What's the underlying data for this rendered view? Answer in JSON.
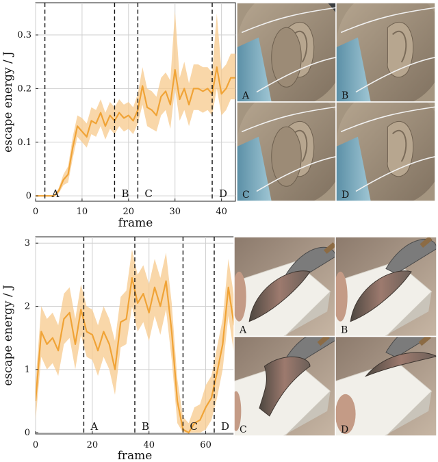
{
  "chart_data": [
    {
      "type": "line",
      "xlabel": "frame",
      "ylabel": "escape energy / J",
      "xlim": [
        0,
        43
      ],
      "ylim": [
        -0.01,
        0.36
      ],
      "xticks": [
        0,
        10,
        20,
        30,
        40
      ],
      "yticks": [
        0,
        0.1,
        0.2,
        0.3
      ],
      "ytick_labels": [
        "0",
        "0.1",
        "0.2",
        "0.3"
      ],
      "grid": true,
      "series_color": "#f0a336",
      "band_color": "#f7c98c",
      "x": [
        0,
        1,
        2,
        3,
        4,
        5,
        6,
        7,
        8,
        9,
        10,
        11,
        12,
        13,
        14,
        15,
        16,
        17,
        18,
        19,
        20,
        21,
        22,
        23,
        24,
        25,
        26,
        27,
        28,
        29,
        30,
        31,
        32,
        33,
        34,
        35,
        36,
        37,
        38,
        39,
        40,
        41,
        42,
        43
      ],
      "y": [
        0,
        0,
        0,
        0,
        0,
        0.01,
        0.03,
        0.04,
        0.09,
        0.13,
        0.12,
        0.11,
        0.14,
        0.135,
        0.155,
        0.13,
        0.15,
        0.14,
        0.155,
        0.145,
        0.15,
        0.14,
        0.16,
        0.205,
        0.165,
        0.16,
        0.15,
        0.185,
        0.195,
        0.17,
        0.235,
        0.18,
        0.2,
        0.17,
        0.2,
        0.2,
        0.195,
        0.2,
        0.19,
        0.24,
        0.19,
        0.2,
        0.22,
        0.22
      ],
      "band_lower": [
        0,
        0,
        0,
        0,
        0,
        0.005,
        0.02,
        0.025,
        0.07,
        0.11,
        0.1,
        0.09,
        0.115,
        0.11,
        0.13,
        0.105,
        0.125,
        0.115,
        0.13,
        0.12,
        0.125,
        0.115,
        0.135,
        0.17,
        0.13,
        0.125,
        0.12,
        0.15,
        0.16,
        0.125,
        0.2,
        0.14,
        0.16,
        0.13,
        0.16,
        0.16,
        0.155,
        0.16,
        0.15,
        0.2,
        0.15,
        0.16,
        0.18,
        0.18
      ],
      "band_upper": [
        0,
        0,
        0,
        0,
        0,
        0.015,
        0.04,
        0.055,
        0.11,
        0.15,
        0.145,
        0.135,
        0.165,
        0.16,
        0.18,
        0.155,
        0.175,
        0.165,
        0.18,
        0.17,
        0.175,
        0.165,
        0.19,
        0.24,
        0.2,
        0.195,
        0.185,
        0.22,
        0.23,
        0.215,
        0.345,
        0.22,
        0.25,
        0.21,
        0.245,
        0.245,
        0.24,
        0.24,
        0.23,
        0.34,
        0.235,
        0.245,
        0.265,
        0.265
      ],
      "events": [
        {
          "frame": 2,
          "label": "A"
        },
        {
          "frame": 17,
          "label": "B"
        },
        {
          "frame": 22,
          "label": "C"
        },
        {
          "frame": 38,
          "label": "D"
        }
      ],
      "thumbnails": [
        {
          "label": "A",
          "subject": "ear"
        },
        {
          "label": "B",
          "subject": "ear"
        },
        {
          "label": "C",
          "subject": "ear"
        },
        {
          "label": "D",
          "subject": "ear"
        }
      ]
    },
    {
      "type": "line",
      "xlabel": "frame",
      "ylabel": "escape energy / J",
      "xlim": [
        0,
        70
      ],
      "ylim": [
        -0.02,
        3.1
      ],
      "xticks": [
        0,
        20,
        40,
        60
      ],
      "yticks": [
        0,
        1,
        2,
        3
      ],
      "ytick_labels": [
        "0",
        "1",
        "2",
        "3"
      ],
      "grid": true,
      "series_color": "#f0a336",
      "band_color": "#f7c98c",
      "x": [
        0,
        2,
        4,
        6,
        8,
        10,
        12,
        14,
        16,
        18,
        20,
        22,
        24,
        26,
        28,
        30,
        32,
        34,
        36,
        38,
        40,
        42,
        44,
        46,
        48,
        50,
        52,
        54,
        56,
        58,
        60,
        62,
        64,
        66,
        68,
        70
      ],
      "y": [
        0.5,
        1.6,
        1.4,
        1.5,
        1.3,
        1.8,
        1.9,
        1.4,
        1.95,
        1.6,
        1.55,
        1.3,
        1.6,
        1.4,
        1.0,
        1.75,
        1.8,
        2.45,
        2.05,
        2.2,
        1.9,
        2.3,
        2.0,
        2.4,
        1.6,
        0.5,
        0.05,
        0.0,
        0.15,
        0.2,
        0.4,
        0.55,
        0.95,
        1.4,
        2.3,
        1.7
      ],
      "band_lower": [
        0.2,
        1.2,
        1.0,
        1.1,
        0.9,
        1.4,
        1.5,
        1.0,
        1.55,
        1.2,
        1.15,
        0.9,
        1.2,
        1.0,
        0.6,
        1.35,
        1.4,
        2.0,
        1.6,
        1.75,
        1.45,
        1.85,
        1.55,
        1.95,
        1.15,
        0.15,
        0.0,
        0.0,
        0.0,
        0.0,
        0.05,
        0.2,
        0.55,
        1.0,
        1.85,
        1.25
      ],
      "band_upper": [
        0.8,
        2.0,
        1.8,
        1.9,
        1.7,
        2.2,
        2.3,
        1.8,
        2.35,
        2.0,
        1.95,
        1.7,
        2.0,
        1.8,
        1.45,
        2.15,
        2.25,
        2.9,
        2.5,
        2.65,
        2.35,
        2.75,
        2.45,
        2.85,
        2.05,
        0.85,
        0.25,
        0.15,
        0.4,
        0.45,
        0.75,
        0.9,
        1.35,
        1.8,
        2.75,
        2.15
      ],
      "events": [
        {
          "frame": 17,
          "label": "A"
        },
        {
          "frame": 35,
          "label": "B"
        },
        {
          "frame": 52,
          "label": "C"
        },
        {
          "frame": 63,
          "label": "D"
        }
      ],
      "thumbnails": [
        {
          "label": "A",
          "subject": "fish"
        },
        {
          "label": "B",
          "subject": "fish"
        },
        {
          "label": "C",
          "subject": "fish"
        },
        {
          "label": "D",
          "subject": "fish"
        }
      ]
    }
  ]
}
